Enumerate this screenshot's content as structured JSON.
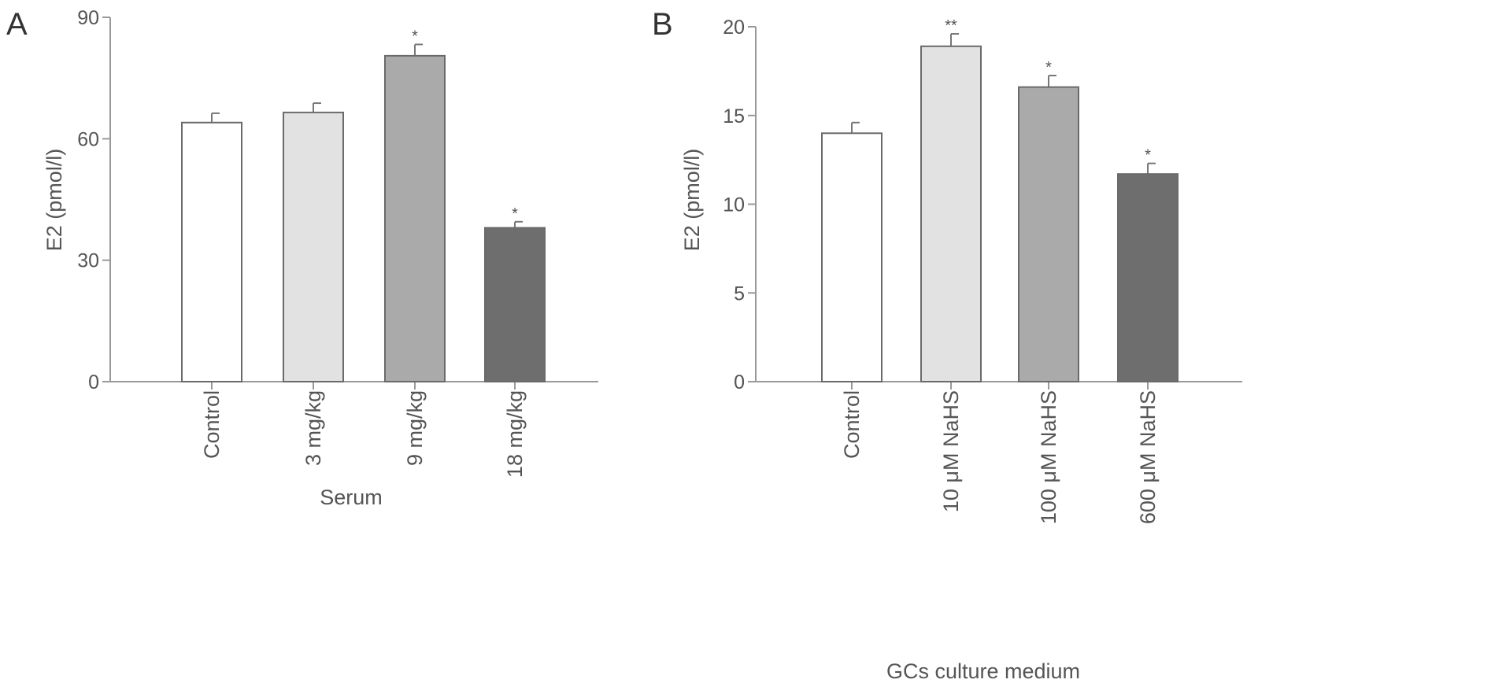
{
  "chart_data": [
    {
      "type": "bar",
      "panel_label": "A",
      "title": "",
      "ylabel": "E2 (pmol/l)",
      "xlabel": "Serum",
      "ylim": [
        0,
        90
      ],
      "yticks": [
        0,
        30,
        60,
        90
      ],
      "categories": [
        "Control",
        "3 mg/kg",
        "9 mg/kg",
        "18 mg/kg"
      ],
      "values": [
        64,
        66.5,
        80.5,
        38
      ],
      "errors": [
        2.3,
        2.3,
        2.8,
        1.5
      ],
      "significance": [
        "",
        "",
        "*",
        "*"
      ],
      "bar_colors": [
        "#ffffff",
        "#e2e2e2",
        "#aaaaaa",
        "#6e6e6e"
      ],
      "grid": false
    },
    {
      "type": "bar",
      "panel_label": "B",
      "title": "",
      "ylabel": "E2 (pmol/l)",
      "xlabel": "GCs culture medium",
      "ylim": [
        0,
        20
      ],
      "yticks": [
        0,
        5,
        10,
        15,
        20
      ],
      "categories": [
        "Control",
        "10 μM NaHS",
        "100 μM NaHS",
        "600 μM NaHS"
      ],
      "values": [
        14,
        18.9,
        16.6,
        11.7
      ],
      "errors": [
        0.6,
        0.7,
        0.65,
        0.6
      ],
      "significance": [
        "",
        "**",
        "*",
        "*"
      ],
      "bar_colors": [
        "#ffffff",
        "#e2e2e2",
        "#aaaaaa",
        "#6e6e6e"
      ],
      "grid": false
    }
  ]
}
